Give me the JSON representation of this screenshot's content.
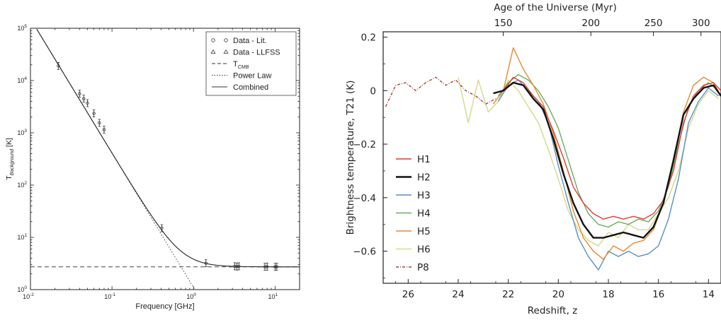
{
  "chart_data": [
    {
      "type": "line",
      "xlabel": "Frequency [GHz]",
      "ylabel_main": "T",
      "ylabel_sub": "Background",
      "ylabel_unit": " [K]",
      "x_scale": "log",
      "y_scale": "log",
      "xlim": [
        0.01,
        20
      ],
      "ylim": [
        1,
        100000
      ],
      "x_ticks": [
        {
          "value": 0.01,
          "base": "10",
          "exp": "-2"
        },
        {
          "value": 0.1,
          "base": "10",
          "exp": "-1"
        },
        {
          "value": 1,
          "base": "10",
          "exp": "0"
        },
        {
          "value": 10,
          "base": "10",
          "exp": "1"
        }
      ],
      "y_ticks": [
        {
          "value": 1,
          "base": "10",
          "exp": "0"
        },
        {
          "value": 10,
          "base": "10",
          "exp": "1"
        },
        {
          "value": 100,
          "base": "10",
          "exp": "2"
        },
        {
          "value": 1000,
          "base": "10",
          "exp": "3"
        },
        {
          "value": 10000,
          "base": "10",
          "exp": "4"
        },
        {
          "value": 100000,
          "base": "10",
          "exp": "5"
        }
      ],
      "legend": [
        {
          "label": "Data - Lit.",
          "style": "circle"
        },
        {
          "label": "Data - LLFSS",
          "style": "triangle"
        },
        {
          "label": "T",
          "sub": "CMB",
          "style": "dashed"
        },
        {
          "label": "Power Law",
          "style": "dotted"
        },
        {
          "label": "Combined",
          "style": "solid"
        }
      ],
      "legend_position": "top-right",
      "t_cmb": 2.725,
      "power_law": {
        "amplitude_at_1ghz": 1.1,
        "index": -2.57
      },
      "data_points": [
        {
          "x": 0.022,
          "y": 19000
        },
        {
          "x": 0.04,
          "y": 5600
        },
        {
          "x": 0.045,
          "y": 4500
        },
        {
          "x": 0.05,
          "y": 3700
        },
        {
          "x": 0.06,
          "y": 2350
        },
        {
          "x": 0.07,
          "y": 1550
        },
        {
          "x": 0.08,
          "y": 1150
        },
        {
          "x": 0.408,
          "y": 15
        },
        {
          "x": 1.42,
          "y": 3.2
        },
        {
          "x": 3.2,
          "y": 2.8
        },
        {
          "x": 3.41,
          "y": 2.75
        },
        {
          "x": 3.6,
          "y": 2.8
        },
        {
          "x": 7.5,
          "y": 2.73
        },
        {
          "x": 8.0,
          "y": 2.75
        },
        {
          "x": 10.0,
          "y": 2.72
        },
        {
          "x": 10.5,
          "y": 2.74
        }
      ]
    },
    {
      "type": "line",
      "xlabel": "Redshift, z",
      "ylabel": "Brightness temperature, T21 (K)",
      "top_xlabel": "Age of the Universe (Myr)",
      "xlim": [
        27,
        13.5
      ],
      "ylim": [
        -0.72,
        0.22
      ],
      "x_ticks": [
        26,
        24,
        22,
        20,
        18,
        16,
        14
      ],
      "y_ticks": [
        "0.2",
        "0",
        "−0.2",
        "−0.4",
        "−0.6"
      ],
      "y_tick_values": [
        0.2,
        0,
        -0.2,
        -0.4,
        -0.6
      ],
      "top_ticks": [
        {
          "label": "150",
          "z": 22.2
        },
        {
          "label": "200",
          "z": 18.7
        },
        {
          "label": "250",
          "z": 16.2
        },
        {
          "label": "300",
          "z": 14.3
        }
      ],
      "legend_position": "center-left",
      "series": [
        {
          "name": "H1",
          "color": "#d9413c",
          "style": "solid",
          "x": [
            22.2,
            21.8,
            21.4,
            21.0,
            20.6,
            20.2,
            19.8,
            19.4,
            19.0,
            18.6,
            18.2,
            17.8,
            17.4,
            17.0,
            16.6,
            16.2,
            15.8,
            15.4,
            15.0,
            14.6,
            14.2,
            13.8,
            13.5
          ],
          "y": [
            0.0,
            0.05,
            0.03,
            -0.02,
            -0.06,
            -0.15,
            -0.25,
            -0.36,
            -0.42,
            -0.46,
            -0.48,
            -0.47,
            -0.48,
            -0.47,
            -0.48,
            -0.46,
            -0.41,
            -0.3,
            -0.12,
            -0.02,
            0.02,
            0.03,
            0.0
          ]
        },
        {
          "name": "H2",
          "color": "#111111",
          "style": "solid",
          "x": [
            22.6,
            22.2,
            21.8,
            21.4,
            21.0,
            20.6,
            20.2,
            19.8,
            19.4,
            19.0,
            18.6,
            18.2,
            17.8,
            17.4,
            17.0,
            16.6,
            16.2,
            15.8,
            15.4,
            15.0,
            14.6,
            14.2,
            13.8,
            13.5
          ],
          "y": [
            -0.01,
            0.0,
            0.03,
            0.02,
            -0.03,
            -0.07,
            -0.18,
            -0.31,
            -0.42,
            -0.5,
            -0.55,
            -0.55,
            -0.54,
            -0.53,
            -0.54,
            -0.55,
            -0.51,
            -0.42,
            -0.26,
            -0.09,
            -0.03,
            0.01,
            0.02,
            -0.02
          ]
        },
        {
          "name": "H3",
          "color": "#5b8ec5",
          "style": "solid",
          "x": [
            22.4,
            22.0,
            21.6,
            21.2,
            20.8,
            20.4,
            20.0,
            19.6,
            19.2,
            18.8,
            18.4,
            18.0,
            17.6,
            17.2,
            16.8,
            16.4,
            16.0,
            15.6,
            15.2,
            14.8,
            14.4,
            14.0,
            13.6
          ],
          "y": [
            -0.04,
            0.02,
            0.04,
            0.0,
            -0.04,
            -0.12,
            -0.28,
            -0.42,
            -0.55,
            -0.62,
            -0.67,
            -0.6,
            -0.62,
            -0.6,
            -0.62,
            -0.61,
            -0.58,
            -0.48,
            -0.33,
            -0.12,
            -0.04,
            0.01,
            -0.02
          ]
        },
        {
          "name": "H4",
          "color": "#6aac5a",
          "style": "solid",
          "x": [
            22.4,
            22.0,
            21.6,
            21.2,
            20.8,
            20.4,
            20.0,
            19.6,
            19.2,
            18.8,
            18.4,
            18.0,
            17.6,
            17.2,
            16.8,
            16.4,
            16.0,
            15.6,
            15.2,
            14.8,
            14.4,
            14.0,
            13.6
          ],
          "y": [
            -0.02,
            0.03,
            0.06,
            0.04,
            0.0,
            -0.06,
            -0.14,
            -0.26,
            -0.38,
            -0.46,
            -0.5,
            -0.51,
            -0.49,
            -0.5,
            -0.48,
            -0.49,
            -0.45,
            -0.36,
            -0.2,
            -0.06,
            0.0,
            0.03,
            0.0
          ]
        },
        {
          "name": "H5",
          "color": "#e8892e",
          "style": "solid",
          "x": [
            22.6,
            22.2,
            21.8,
            21.4,
            21.0,
            20.6,
            20.2,
            19.8,
            19.4,
            19.0,
            18.6,
            18.2,
            17.8,
            17.4,
            17.0,
            16.6,
            16.2,
            15.8,
            15.4,
            15.0,
            14.6,
            14.2,
            13.8,
            13.5
          ],
          "y": [
            -0.05,
            0.0,
            0.16,
            0.08,
            0.02,
            -0.05,
            -0.16,
            -0.3,
            -0.45,
            -0.55,
            -0.6,
            -0.63,
            -0.58,
            -0.6,
            -0.57,
            -0.56,
            -0.52,
            -0.42,
            -0.26,
            -0.08,
            0.02,
            0.05,
            0.03,
            -0.02
          ]
        },
        {
          "name": "H6",
          "color": "#d3da8a",
          "style": "solid",
          "x": [
            24.0,
            23.6,
            23.2,
            22.8,
            22.4,
            22.0,
            21.6,
            21.2,
            20.8,
            20.4,
            20.0,
            19.6,
            19.2,
            18.8,
            18.4,
            18.0,
            17.6,
            17.2,
            16.8,
            16.4,
            16.0,
            15.6,
            15.2,
            14.8,
            14.4,
            14.0,
            13.6
          ],
          "y": [
            0.05,
            -0.12,
            0.04,
            -0.08,
            -0.04,
            0.04,
            0.0,
            -0.06,
            -0.12,
            -0.22,
            -0.33,
            -0.45,
            -0.52,
            -0.56,
            -0.58,
            -0.53,
            -0.55,
            -0.5,
            -0.52,
            -0.52,
            -0.46,
            -0.4,
            -0.3,
            -0.14,
            -0.05,
            0.0,
            -0.03
          ]
        },
        {
          "name": "P8",
          "color": "#9a4a3a",
          "style": "dashdot",
          "x": [
            26.9,
            26.5,
            26.1,
            25.7,
            25.3,
            24.9,
            24.5,
            24.1,
            23.7,
            23.3,
            22.9,
            22.5
          ],
          "y": [
            -0.06,
            0.02,
            0.03,
            0.0,
            0.03,
            0.05,
            0.02,
            0.04,
            0.0,
            -0.02,
            -0.05,
            -0.03
          ]
        }
      ]
    }
  ]
}
